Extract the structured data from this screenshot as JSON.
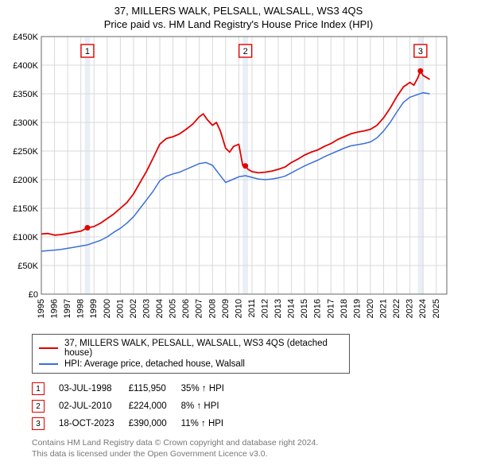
{
  "title_line1": "37, MILLERS WALK, PELSALL, WALSALL, WS3 4QS",
  "title_line2": "Price paid vs. HM Land Registry's House Price Index (HPI)",
  "chart": {
    "background_color": "#ffffff",
    "grid_color": "#d9d9d9",
    "highlight_band_color": "#e9eef7",
    "axis_color": "#666666",
    "x_years": [
      1995,
      1996,
      1997,
      1998,
      1999,
      2000,
      2001,
      2002,
      2003,
      2004,
      2005,
      2006,
      2007,
      2008,
      2009,
      2010,
      2011,
      2012,
      2013,
      2014,
      2015,
      2016,
      2017,
      2018,
      2019,
      2020,
      2021,
      2022,
      2023,
      2024,
      2025
    ],
    "x_domain": [
      1995,
      2025.8
    ],
    "y_domain": [
      0,
      450000
    ],
    "y_ticks": [
      0,
      50000,
      100000,
      150000,
      200000,
      250000,
      300000,
      350000,
      400000,
      450000
    ],
    "y_tick_labels": [
      "£0",
      "£50K",
      "£100K",
      "£150K",
      "£200K",
      "£250K",
      "£300K",
      "£350K",
      "£400K",
      "£450K"
    ],
    "highlight_bands": [
      [
        1998.3,
        1998.7
      ],
      [
        2010.3,
        2010.7
      ],
      [
        2023.6,
        2024.0
      ]
    ],
    "series": [
      {
        "name": "price_paid",
        "color": "#e20000",
        "width": 1.8,
        "points": [
          [
            1995.0,
            105000
          ],
          [
            1995.5,
            106000
          ],
          [
            1996.0,
            103000
          ],
          [
            1996.5,
            104000
          ],
          [
            1997.0,
            106000
          ],
          [
            1997.5,
            108000
          ],
          [
            1998.0,
            110000
          ],
          [
            1998.5,
            115950
          ],
          [
            1999.0,
            118000
          ],
          [
            1999.5,
            124000
          ],
          [
            2000.0,
            132000
          ],
          [
            2000.5,
            140000
          ],
          [
            2001.0,
            150000
          ],
          [
            2001.5,
            160000
          ],
          [
            2002.0,
            175000
          ],
          [
            2002.5,
            195000
          ],
          [
            2003.0,
            215000
          ],
          [
            2003.5,
            238000
          ],
          [
            2004.0,
            262000
          ],
          [
            2004.5,
            272000
          ],
          [
            2005.0,
            275000
          ],
          [
            2005.5,
            280000
          ],
          [
            2006.0,
            288000
          ],
          [
            2006.5,
            297000
          ],
          [
            2007.0,
            310000
          ],
          [
            2007.3,
            315000
          ],
          [
            2007.6,
            305000
          ],
          [
            2008.0,
            295000
          ],
          [
            2008.3,
            300000
          ],
          [
            2008.6,
            285000
          ],
          [
            2009.0,
            255000
          ],
          [
            2009.3,
            248000
          ],
          [
            2009.6,
            258000
          ],
          [
            2010.0,
            262000
          ],
          [
            2010.3,
            225000
          ],
          [
            2010.5,
            224000
          ],
          [
            2010.7,
            218000
          ],
          [
            2011.0,
            214000
          ],
          [
            2011.5,
            212000
          ],
          [
            2012.0,
            213000
          ],
          [
            2012.5,
            215000
          ],
          [
            2013.0,
            218000
          ],
          [
            2013.5,
            222000
          ],
          [
            2014.0,
            230000
          ],
          [
            2014.5,
            236000
          ],
          [
            2015.0,
            243000
          ],
          [
            2015.5,
            248000
          ],
          [
            2016.0,
            252000
          ],
          [
            2016.5,
            258000
          ],
          [
            2017.0,
            263000
          ],
          [
            2017.5,
            270000
          ],
          [
            2018.0,
            275000
          ],
          [
            2018.5,
            280000
          ],
          [
            2019.0,
            283000
          ],
          [
            2019.5,
            285000
          ],
          [
            2020.0,
            288000
          ],
          [
            2020.5,
            295000
          ],
          [
            2021.0,
            308000
          ],
          [
            2021.5,
            325000
          ],
          [
            2022.0,
            345000
          ],
          [
            2022.5,
            362000
          ],
          [
            2023.0,
            370000
          ],
          [
            2023.3,
            365000
          ],
          [
            2023.6,
            378000
          ],
          [
            2023.8,
            390000
          ],
          [
            2024.0,
            382000
          ],
          [
            2024.3,
            378000
          ],
          [
            2024.5,
            375000
          ]
        ]
      },
      {
        "name": "hpi",
        "color": "#3a6fd8",
        "width": 1.5,
        "points": [
          [
            1995.0,
            75000
          ],
          [
            1995.5,
            76000
          ],
          [
            1996.0,
            77000
          ],
          [
            1996.5,
            78000
          ],
          [
            1997.0,
            80000
          ],
          [
            1997.5,
            82000
          ],
          [
            1998.0,
            84000
          ],
          [
            1998.5,
            86000
          ],
          [
            1999.0,
            90000
          ],
          [
            1999.5,
            94000
          ],
          [
            2000.0,
            100000
          ],
          [
            2000.5,
            108000
          ],
          [
            2001.0,
            115000
          ],
          [
            2001.5,
            124000
          ],
          [
            2002.0,
            135000
          ],
          [
            2002.5,
            150000
          ],
          [
            2003.0,
            165000
          ],
          [
            2003.5,
            180000
          ],
          [
            2004.0,
            198000
          ],
          [
            2004.5,
            206000
          ],
          [
            2005.0,
            210000
          ],
          [
            2005.5,
            213000
          ],
          [
            2006.0,
            218000
          ],
          [
            2006.5,
            223000
          ],
          [
            2007.0,
            228000
          ],
          [
            2007.5,
            230000
          ],
          [
            2008.0,
            225000
          ],
          [
            2008.5,
            210000
          ],
          [
            2009.0,
            195000
          ],
          [
            2009.5,
            200000
          ],
          [
            2010.0,
            205000
          ],
          [
            2010.5,
            207000
          ],
          [
            2011.0,
            204000
          ],
          [
            2011.5,
            201000
          ],
          [
            2012.0,
            200000
          ],
          [
            2012.5,
            201000
          ],
          [
            2013.0,
            203000
          ],
          [
            2013.5,
            206000
          ],
          [
            2014.0,
            212000
          ],
          [
            2014.5,
            218000
          ],
          [
            2015.0,
            224000
          ],
          [
            2015.5,
            229000
          ],
          [
            2016.0,
            234000
          ],
          [
            2016.5,
            240000
          ],
          [
            2017.0,
            245000
          ],
          [
            2017.5,
            250000
          ],
          [
            2018.0,
            255000
          ],
          [
            2018.5,
            259000
          ],
          [
            2019.0,
            261000
          ],
          [
            2019.5,
            263000
          ],
          [
            2020.0,
            266000
          ],
          [
            2020.5,
            273000
          ],
          [
            2021.0,
            285000
          ],
          [
            2021.5,
            300000
          ],
          [
            2022.0,
            318000
          ],
          [
            2022.5,
            335000
          ],
          [
            2023.0,
            344000
          ],
          [
            2023.5,
            348000
          ],
          [
            2024.0,
            352000
          ],
          [
            2024.5,
            350000
          ]
        ]
      }
    ],
    "sale_markers": [
      {
        "n": "1",
        "year": 1998.5,
        "price": 115950,
        "color": "#e20000"
      },
      {
        "n": "2",
        "year": 2010.5,
        "price": 224000,
        "color": "#e20000"
      },
      {
        "n": "3",
        "year": 2023.8,
        "price": 390000,
        "color": "#e20000"
      }
    ]
  },
  "legend": {
    "items": [
      {
        "color": "#e20000",
        "label": "37, MILLERS WALK, PELSALL, WALSALL, WS3 4QS (detached house)"
      },
      {
        "color": "#3a6fd8",
        "label": "HPI: Average price, detached house, Walsall"
      }
    ]
  },
  "sales": [
    {
      "n": "1",
      "color": "#e20000",
      "date": "03-JUL-1998",
      "price": "£115,950",
      "delta": "35% ↑ HPI"
    },
    {
      "n": "2",
      "color": "#e20000",
      "date": "02-JUL-2010",
      "price": "£224,000",
      "delta": "8% ↑ HPI"
    },
    {
      "n": "3",
      "color": "#e20000",
      "date": "18-OCT-2023",
      "price": "£390,000",
      "delta": "11% ↑ HPI"
    }
  ],
  "footer": {
    "line1": "Contains HM Land Registry data © Crown copyright and database right 2024.",
    "line2": "This data is licensed under the Open Government Licence v3.0."
  }
}
